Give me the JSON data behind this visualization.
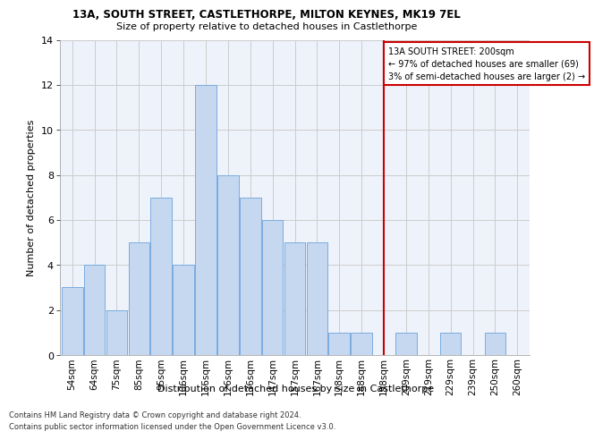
{
  "title_line1": "13A, SOUTH STREET, CASTLETHORPE, MILTON KEYNES, MK19 7EL",
  "title_line2": "Size of property relative to detached houses in Castlethorpe",
  "xlabel": "Distribution of detached houses by size in Castlethorpe",
  "ylabel": "Number of detached properties",
  "categories": [
    "54sqm",
    "64sqm",
    "75sqm",
    "85sqm",
    "95sqm",
    "106sqm",
    "116sqm",
    "126sqm",
    "136sqm",
    "147sqm",
    "157sqm",
    "167sqm",
    "178sqm",
    "188sqm",
    "198sqm",
    "209sqm",
    "219sqm",
    "229sqm",
    "239sqm",
    "250sqm",
    "260sqm"
  ],
  "values": [
    3,
    4,
    2,
    5,
    7,
    4,
    12,
    8,
    7,
    6,
    5,
    5,
    1,
    1,
    0,
    1,
    0,
    1,
    0,
    1,
    0
  ],
  "bar_color": "#c5d8f0",
  "bar_edge_color": "#7aace0",
  "grid_color": "#cccccc",
  "annotation_text": "13A SOUTH STREET: 200sqm\n← 97% of detached houses are smaller (69)\n3% of semi-detached houses are larger (2) →",
  "annotation_box_color": "#ffffff",
  "annotation_box_edge_color": "#cc0000",
  "vline_color": "#cc0000",
  "ylim": [
    0,
    14
  ],
  "yticks": [
    0,
    2,
    4,
    6,
    8,
    10,
    12,
    14
  ],
  "footnote1": "Contains HM Land Registry data © Crown copyright and database right 2024.",
  "footnote2": "Contains public sector information licensed under the Open Government Licence v3.0.",
  "background_color": "#eef2fa",
  "vline_index": 14.0
}
